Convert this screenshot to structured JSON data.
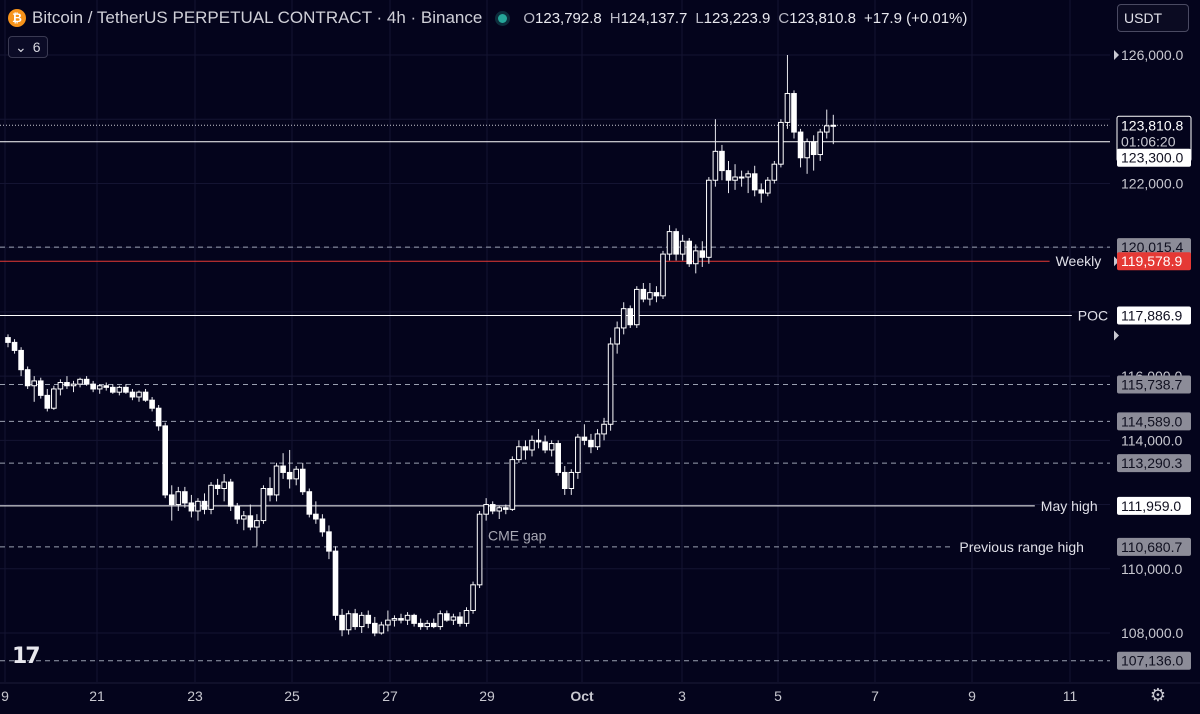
{
  "header": {
    "logo_glyph": "₿",
    "title": "Bitcoin / TetherUS PERPETUAL CONTRACT · 4h · Binance",
    "open_label": "O",
    "open": "123,792.8",
    "high_label": "H",
    "high": "124,137.7",
    "low_label": "L",
    "low": "123,223.9",
    "close_label": "C",
    "close": "123,810.8",
    "change": "+17.9 (+0.01%)"
  },
  "indicators_toggle": {
    "count": "6"
  },
  "currency": "USDT",
  "icons": {
    "settings": "gear-icon",
    "collapse": "chevron-down-icon",
    "logo": "tradingview-logo"
  },
  "chart_data": {
    "type": "candlestick",
    "y_axis": {
      "min": 106500,
      "max": 126800,
      "ticks": [
        "126,000.0",
        "122,000.0",
        "116,000.0",
        "114,000.0",
        "110,000.0",
        "108,000.0"
      ]
    },
    "x_axis": {
      "ticks": [
        "9",
        "21",
        "23",
        "25",
        "27",
        "29",
        "Oct",
        "3",
        "5",
        "7",
        "9",
        "11"
      ]
    },
    "price_labels": {
      "last": "123,810.8",
      "countdown": "01:06:20",
      "level": "123,300.0"
    },
    "levels": [
      {
        "value": 120015.4,
        "label": "120,015.4",
        "annotation": "",
        "style": "dashed",
        "color": "#9aa0b0"
      },
      {
        "value": 119578.9,
        "label": "119,578.9",
        "annotation": "Weekly",
        "style": "solid",
        "color": "#e53935"
      },
      {
        "value": 117886.9,
        "label": "117,886.9",
        "annotation": "POC",
        "style": "solid",
        "color": "#ffffff"
      },
      {
        "value": 115738.7,
        "label": "115,738.7",
        "annotation": "",
        "style": "dashed",
        "color": "#9aa0b0"
      },
      {
        "value": 114589.0,
        "label": "114,589.0",
        "annotation": "",
        "style": "dashed",
        "color": "#9aa0b0"
      },
      {
        "value": 113290.3,
        "label": "113,290.3",
        "annotation": "",
        "style": "dashed",
        "color": "#9aa0b0"
      },
      {
        "value": 111959.0,
        "label": "111,959.0",
        "annotation": "May high",
        "style": "solid",
        "color": "#ffffff"
      },
      {
        "value": 110680.7,
        "label": "110,680.7",
        "annotation": "Previous range high",
        "style": "dashed",
        "color": "#9aa0b0"
      },
      {
        "value": 107136.0,
        "label": "107,136.0",
        "annotation": "",
        "style": "dashed",
        "color": "#9aa0b0"
      }
    ],
    "level_123300": 123300,
    "last_price": 123810.8,
    "annotations": [
      {
        "text": "CME gap",
        "date": "Sep 29",
        "y": 111000
      }
    ],
    "candles": [
      [
        117200,
        117300,
        116900,
        117050
      ],
      [
        117050,
        117150,
        116700,
        116800
      ],
      [
        116800,
        116900,
        116000,
        116200
      ],
      [
        116200,
        116300,
        115600,
        115700
      ],
      [
        115700,
        116000,
        115200,
        115850
      ],
      [
        115850,
        115950,
        115300,
        115400
      ],
      [
        115400,
        115600,
        114900,
        115000
      ],
      [
        115000,
        115700,
        114950,
        115600
      ],
      [
        115600,
        115900,
        115400,
        115800
      ],
      [
        115800,
        116000,
        115600,
        115700
      ],
      [
        115700,
        115850,
        115500,
        115750
      ],
      [
        115750,
        115950,
        115650,
        115900
      ],
      [
        115900,
        116000,
        115700,
        115750
      ],
      [
        115750,
        115850,
        115500,
        115600
      ],
      [
        115600,
        115750,
        115450,
        115700
      ],
      [
        115700,
        115800,
        115550,
        115650
      ],
      [
        115650,
        115750,
        115450,
        115500
      ],
      [
        115500,
        115700,
        115400,
        115650
      ],
      [
        115650,
        115750,
        115450,
        115500
      ],
      [
        115500,
        115600,
        115250,
        115350
      ],
      [
        115350,
        115550,
        115200,
        115500
      ],
      [
        115500,
        115600,
        115200,
        115250
      ],
      [
        115250,
        115350,
        114900,
        115000
      ],
      [
        115000,
        115100,
        114300,
        114450
      ],
      [
        114450,
        114550,
        112200,
        112300
      ],
      [
        112300,
        112600,
        111500,
        112000
      ],
      [
        112000,
        112550,
        111800,
        112400
      ],
      [
        112400,
        112550,
        111900,
        112050
      ],
      [
        112050,
        112300,
        111600,
        111800
      ],
      [
        111800,
        112200,
        111500,
        112100
      ],
      [
        112100,
        112350,
        111700,
        111850
      ],
      [
        111850,
        112700,
        111700,
        112600
      ],
      [
        112600,
        112800,
        112300,
        112500
      ],
      [
        112500,
        112950,
        112100,
        112700
      ],
      [
        112700,
        112800,
        111800,
        111950
      ],
      [
        111950,
        112050,
        111400,
        111550
      ],
      [
        111550,
        111800,
        111200,
        111650
      ],
      [
        111650,
        112000,
        111200,
        111300
      ],
      [
        111300,
        111700,
        110700,
        111500
      ],
      [
        111500,
        112600,
        111400,
        112500
      ],
      [
        112500,
        112850,
        112100,
        112300
      ],
      [
        112300,
        113300,
        112100,
        113200
      ],
      [
        113200,
        113600,
        112800,
        113000
      ],
      [
        113000,
        113700,
        112500,
        112800
      ],
      [
        112800,
        113200,
        112600,
        113100
      ],
      [
        113100,
        113300,
        112300,
        112400
      ],
      [
        112400,
        112500,
        111600,
        111700
      ],
      [
        111700,
        112100,
        111400,
        111550
      ],
      [
        111550,
        111700,
        111000,
        111150
      ],
      [
        111150,
        111350,
        110300,
        110550
      ],
      [
        110550,
        110700,
        108400,
        108550
      ],
      [
        108550,
        108750,
        107900,
        108100
      ],
      [
        108100,
        108700,
        107950,
        108600
      ],
      [
        108600,
        108750,
        108100,
        108200
      ],
      [
        108200,
        108650,
        108000,
        108550
      ],
      [
        108550,
        108700,
        108150,
        108300
      ],
      [
        108300,
        108500,
        107900,
        108000
      ],
      [
        108000,
        108350,
        107950,
        108250
      ],
      [
        108250,
        108700,
        108050,
        108400
      ],
      [
        108400,
        108550,
        108200,
        108450
      ],
      [
        108450,
        108600,
        108300,
        108400
      ],
      [
        108400,
        108650,
        108250,
        108550
      ],
      [
        108550,
        108600,
        108200,
        108300
      ],
      [
        108300,
        108450,
        108100,
        108200
      ],
      [
        108200,
        108400,
        108100,
        108300
      ],
      [
        108300,
        108450,
        108150,
        108200
      ],
      [
        108200,
        108700,
        108100,
        108600
      ],
      [
        108600,
        108700,
        108350,
        108400
      ],
      [
        108400,
        108600,
        108250,
        108500
      ],
      [
        108500,
        108650,
        108200,
        108300
      ],
      [
        108300,
        108800,
        108200,
        108700
      ],
      [
        108700,
        109600,
        108600,
        109500
      ],
      [
        109500,
        111800,
        109400,
        111700
      ],
      [
        111700,
        112200,
        111500,
        112000
      ],
      [
        112000,
        112100,
        111700,
        111800
      ],
      [
        111800,
        111950,
        111550,
        111900
      ],
      [
        111900,
        112000,
        111700,
        111850
      ],
      [
        111850,
        113500,
        111800,
        113400
      ],
      [
        113400,
        114000,
        113300,
        113800
      ],
      [
        113800,
        114000,
        113400,
        113700
      ],
      [
        113700,
        114150,
        113500,
        114000
      ],
      [
        114000,
        114350,
        113750,
        113950
      ],
      [
        113950,
        114150,
        113600,
        113700
      ],
      [
        113700,
        114000,
        113500,
        113900
      ],
      [
        113900,
        114000,
        112900,
        113000
      ],
      [
        113000,
        113200,
        112300,
        112500
      ],
      [
        112500,
        113100,
        112300,
        113000
      ],
      [
        113000,
        114200,
        112800,
        114100
      ],
      [
        114100,
        114500,
        113850,
        114000
      ],
      [
        114000,
        114200,
        113600,
        113800
      ],
      [
        113800,
        114350,
        113700,
        114200
      ],
      [
        114200,
        114700,
        114000,
        114500
      ],
      [
        114500,
        117200,
        114300,
        117000
      ],
      [
        117000,
        117700,
        116700,
        117500
      ],
      [
        117500,
        118300,
        117300,
        118100
      ],
      [
        118100,
        118200,
        117500,
        117600
      ],
      [
        117600,
        118800,
        117500,
        118700
      ],
      [
        118700,
        118900,
        118300,
        118400
      ],
      [
        118400,
        118900,
        118200,
        118600
      ],
      [
        118600,
        118800,
        118300,
        118500
      ],
      [
        118500,
        119900,
        118400,
        119800
      ],
      [
        119800,
        120700,
        119600,
        120500
      ],
      [
        120500,
        120600,
        119600,
        119800
      ],
      [
        119800,
        120400,
        119600,
        120200
      ],
      [
        120200,
        120300,
        119400,
        119500
      ],
      [
        119500,
        120100,
        119200,
        119900
      ],
      [
        119900,
        120200,
        119400,
        119700
      ],
      [
        119700,
        122200,
        119500,
        122100
      ],
      [
        122100,
        124000,
        121900,
        123000
      ],
      [
        123000,
        123200,
        122100,
        122400
      ],
      [
        122400,
        122700,
        121700,
        122100
      ],
      [
        122100,
        122600,
        121800,
        122200
      ],
      [
        122200,
        122400,
        121900,
        122200
      ],
      [
        122200,
        122400,
        121700,
        122300
      ],
      [
        122300,
        122550,
        121600,
        121800
      ],
      [
        121800,
        122000,
        121400,
        121700
      ],
      [
        121700,
        122200,
        121600,
        122100
      ],
      [
        122100,
        122700,
        122000,
        122600
      ],
      [
        122600,
        124000,
        122500,
        123900
      ],
      [
        123900,
        126000,
        123700,
        124800
      ],
      [
        124800,
        124900,
        123400,
        123600
      ],
      [
        123600,
        123700,
        122500,
        122800
      ],
      [
        122800,
        123400,
        122300,
        123300
      ],
      [
        123300,
        123500,
        122400,
        122900
      ],
      [
        122900,
        123700,
        122700,
        123600
      ],
      [
        123600,
        124300,
        123400,
        123792.8
      ],
      [
        123792.8,
        124137.7,
        123223.9,
        123810.8
      ]
    ]
  }
}
